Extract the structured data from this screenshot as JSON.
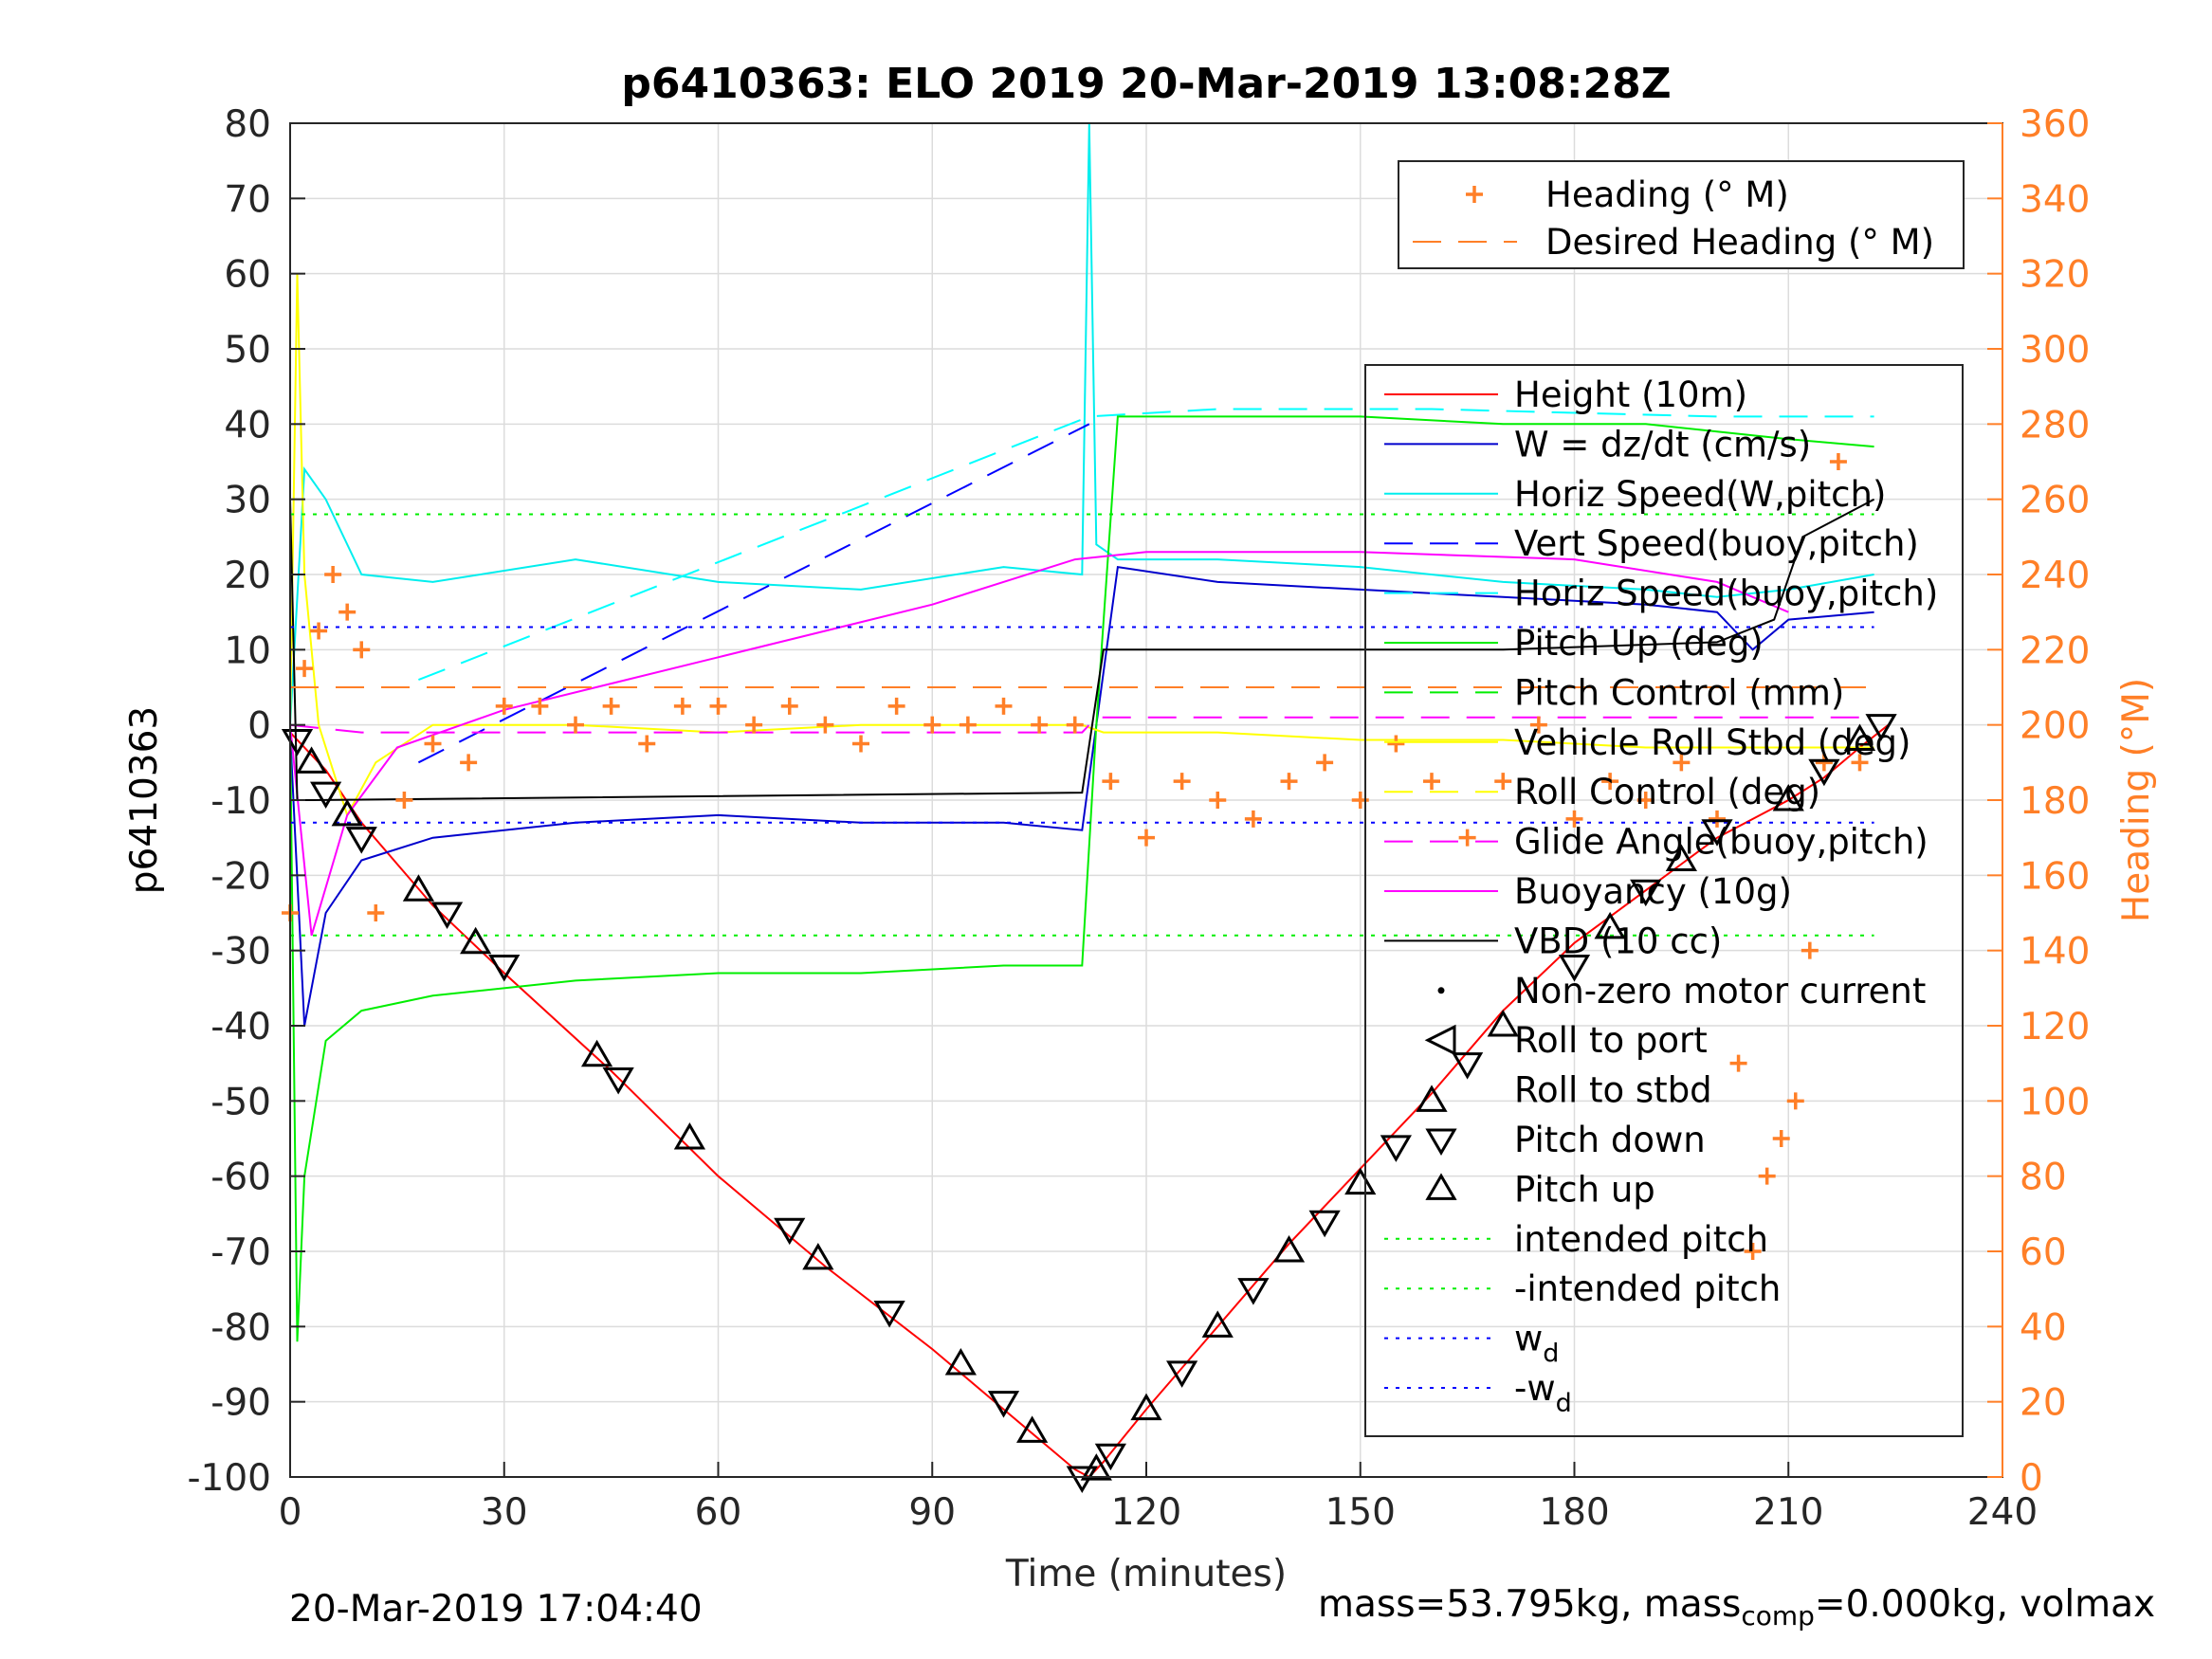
{
  "chart_data": {
    "type": "line",
    "title": "p6410363: ELO 2019 20-Mar-2019 13:08:28Z",
    "xlabel": "Time (minutes)",
    "ylabel": "p6410363",
    "y2label": "Heading (°M)",
    "xlim": [
      0,
      240
    ],
    "ylim": [
      -100,
      80
    ],
    "y2lim": [
      0,
      360
    ],
    "xticks": [
      0,
      30,
      60,
      90,
      120,
      150,
      180,
      210,
      240
    ],
    "yticks": [
      -100,
      -90,
      -80,
      -70,
      -60,
      -50,
      -40,
      -30,
      -20,
      -10,
      0,
      10,
      20,
      30,
      40,
      50,
      60,
      70,
      80
    ],
    "y2ticks": [
      0,
      20,
      40,
      60,
      80,
      100,
      120,
      140,
      160,
      180,
      200,
      220,
      240,
      260,
      280,
      300,
      320,
      340,
      360
    ],
    "grid": true,
    "colors": {
      "height": "#ff0000",
      "w": "#0000cc",
      "horiz_speed_w": "#00eeee",
      "vert_speed_buoy": "#0000ff",
      "horiz_speed_buoy": "#00ffff",
      "pitch_up": "#00ee00",
      "vehicle_roll": "#ffff00",
      "glide_angle": "#ff00ff",
      "buoyancy": "#ff00ff",
      "vbd": "#000000",
      "heading": "#ff7f27",
      "intended_pitch": "#00ee00",
      "wd": "#0000ff"
    },
    "legend_top": {
      "placement": "top-right",
      "entries": [
        "Heading (° M)",
        "Desired Heading (° M)"
      ]
    },
    "legend_main": {
      "placement": "right",
      "entries": [
        "Height (10m)",
        "W = dz/dt (cm/s)",
        "Horiz Speed(W,pitch)",
        "Vert Speed(buoy,pitch)",
        "Horiz Speed(buoy,pitch)",
        "Pitch Up (deg)",
        "Pitch Control (mm)",
        "Vehicle Roll Stbd (deg)",
        "Roll Control (deg)",
        "Glide Angle(buoy,pitch)",
        "Buoyancy (10g)",
        "VBD (10 cc)",
        "Non-zero motor current",
        "Roll to port",
        "Roll to stbd",
        "Pitch down",
        "Pitch up",
        "intended pitch",
        "-intended pitch",
        "w_d",
        "-w_d"
      ]
    },
    "series": [
      {
        "name": "Height (10m)",
        "x": [
          0,
          5,
          10,
          20,
          30,
          45,
          60,
          75,
          90,
          100,
          105,
          110,
          112,
          114,
          120,
          130,
          140,
          150,
          160,
          170,
          180,
          190,
          200,
          210,
          215,
          220,
          224
        ],
        "y": [
          -1,
          -6,
          -13,
          -24,
          -33,
          -46,
          -60,
          -72,
          -83,
          -91,
          -95,
          -99,
          -100,
          -98,
          -91,
          -80,
          -69,
          -59,
          -49,
          -38,
          -29,
          -22,
          -15,
          -10,
          -7,
          -3,
          0
        ]
      },
      {
        "name": "W = dz/dt (cm/s)",
        "x": [
          0,
          2,
          5,
          10,
          20,
          40,
          60,
          80,
          100,
          111,
          113,
          116,
          130,
          150,
          170,
          190,
          200,
          205,
          210,
          222
        ],
        "y": [
          -1,
          -40,
          -25,
          -18,
          -15,
          -13,
          -12,
          -13,
          -13,
          -14,
          0,
          21,
          19,
          18,
          17,
          16,
          15,
          10,
          14,
          15
        ]
      },
      {
        "name": "Horiz Speed(W,pitch)",
        "x": [
          0,
          2,
          5,
          10,
          20,
          40,
          60,
          80,
          100,
          111,
          112,
          113,
          116,
          130,
          150,
          170,
          190,
          200,
          210,
          222
        ],
        "y": [
          0,
          34,
          30,
          20,
          19,
          22,
          19,
          18,
          21,
          20,
          80,
          24,
          22,
          22,
          21,
          19,
          18,
          17,
          18,
          20
        ]
      },
      {
        "name": "Horiz Speed(buoy,pitch)",
        "x": [
          18,
          112,
          130,
          160,
          200,
          222
        ],
        "y": [
          6,
          41,
          42,
          42,
          41,
          41
        ]
      },
      {
        "name": "Vert Speed(buoy,pitch)",
        "x": [
          18,
          112
        ],
        "y": [
          -5,
          40
        ]
      },
      {
        "name": "Pitch Up (deg)",
        "x": [
          0,
          1,
          2,
          5,
          10,
          20,
          40,
          60,
          80,
          100,
          111,
          113,
          116,
          130,
          150,
          170,
          190,
          200,
          210,
          222
        ],
        "y": [
          0,
          -82,
          -60,
          -42,
          -38,
          -36,
          -34,
          -33,
          -33,
          -32,
          -32,
          0,
          41,
          41,
          41,
          40,
          40,
          39,
          38,
          37
        ]
      },
      {
        "name": "Vehicle Roll Stbd (deg)",
        "x": [
          0,
          1,
          2,
          4,
          8,
          12,
          20,
          40,
          60,
          80,
          100,
          111,
          114,
          130,
          150,
          170,
          190,
          210,
          222
        ],
        "y": [
          0,
          60,
          20,
          0,
          -12,
          -5,
          0,
          0,
          -1,
          0,
          0,
          0,
          -1,
          -1,
          -2,
          -2,
          -3,
          -3,
          -3
        ]
      },
      {
        "name": "Glide Angle(buoy,pitch)",
        "x": [
          0,
          10,
          111,
          113,
          222
        ],
        "y": [
          0,
          -1,
          -1,
          1,
          1
        ]
      },
      {
        "name": "Buoyancy (10g)",
        "x": [
          0,
          3,
          8,
          15,
          30,
          60,
          90,
          110,
          120,
          150,
          180,
          200,
          210
        ],
        "y": [
          0,
          -28,
          -12,
          -3,
          2,
          9,
          16,
          22,
          23,
          23,
          22,
          19,
          15
        ]
      },
      {
        "name": "VBD (10 cc)",
        "x": [
          0,
          1,
          3,
          111,
          114,
          140,
          170,
          200,
          208,
          212,
          222
        ],
        "y": [
          30,
          -10,
          -10,
          -9,
          10,
          10,
          10,
          11,
          14,
          25,
          30
        ]
      },
      {
        "name": "intended pitch",
        "x": [
          0,
          222
        ],
        "y": [
          28,
          28
        ]
      },
      {
        "name": "-intended pitch",
        "x": [
          0,
          222
        ],
        "y": [
          -28,
          -28
        ]
      },
      {
        "name": "w_d",
        "x": [
          0,
          222
        ],
        "y": [
          13,
          13
        ]
      },
      {
        "name": "-w_d",
        "x": [
          0,
          222
        ],
        "y": [
          -13,
          -13
        ]
      },
      {
        "name": "Desired Heading (° M)",
        "x": [
          0,
          222
        ],
        "y2": [
          210,
          210
        ]
      },
      {
        "name": "Heading (° M)",
        "type": "scatter",
        "x": [
          0,
          2,
          4,
          6,
          8,
          10,
          12,
          16,
          20,
          25,
          30,
          35,
          40,
          45,
          50,
          55,
          60,
          65,
          70,
          75,
          80,
          85,
          90,
          95,
          100,
          105,
          110,
          115,
          120,
          125,
          130,
          135,
          140,
          145,
          150,
          155,
          160,
          165,
          170,
          175,
          180,
          185,
          190,
          195,
          200,
          203,
          205,
          207,
          209,
          211,
          213,
          215,
          217,
          220
        ],
        "y2": [
          150,
          215,
          225,
          240,
          230,
          220,
          150,
          180,
          195,
          190,
          205,
          205,
          200,
          205,
          195,
          205,
          205,
          200,
          205,
          200,
          195,
          205,
          200,
          200,
          205,
          200,
          200,
          185,
          170,
          185,
          180,
          175,
          185,
          190,
          180,
          195,
          185,
          170,
          185,
          200,
          175,
          185,
          180,
          190,
          175,
          110,
          60,
          80,
          90,
          100,
          140,
          190,
          270,
          190
        ]
      },
      {
        "name": "Pitch down / Pitch up",
        "type": "markers",
        "x": [
          1,
          3,
          5,
          8,
          10,
          18,
          22,
          26,
          30,
          43,
          46,
          56,
          70,
          74,
          84,
          94,
          100,
          104,
          111,
          113,
          115,
          120,
          125,
          130,
          135,
          140,
          145,
          150,
          155,
          160,
          165,
          170,
          180,
          185,
          190,
          195,
          200,
          210,
          215,
          220,
          223
        ],
        "y": [
          -2,
          -5,
          -9,
          -12,
          -15,
          -22,
          -25,
          -29,
          -32,
          -44,
          -47,
          -55,
          -67,
          -71,
          -78,
          -85,
          -90,
          -94,
          -100,
          -99,
          -97,
          -91,
          -86,
          -80,
          -75,
          -70,
          -66,
          -61,
          -56,
          -50,
          -45,
          -40,
          -32,
          -27,
          -22,
          -18,
          -14,
          -10,
          -6,
          -2,
          0
        ]
      }
    ]
  },
  "footer": {
    "timestamp": "20-Mar-2019 17:04:40",
    "mass_text_1": "mass=53.795kg, mass",
    "mass_sub": "comp",
    "mass_text_2": "=0.000kg, volmax"
  }
}
